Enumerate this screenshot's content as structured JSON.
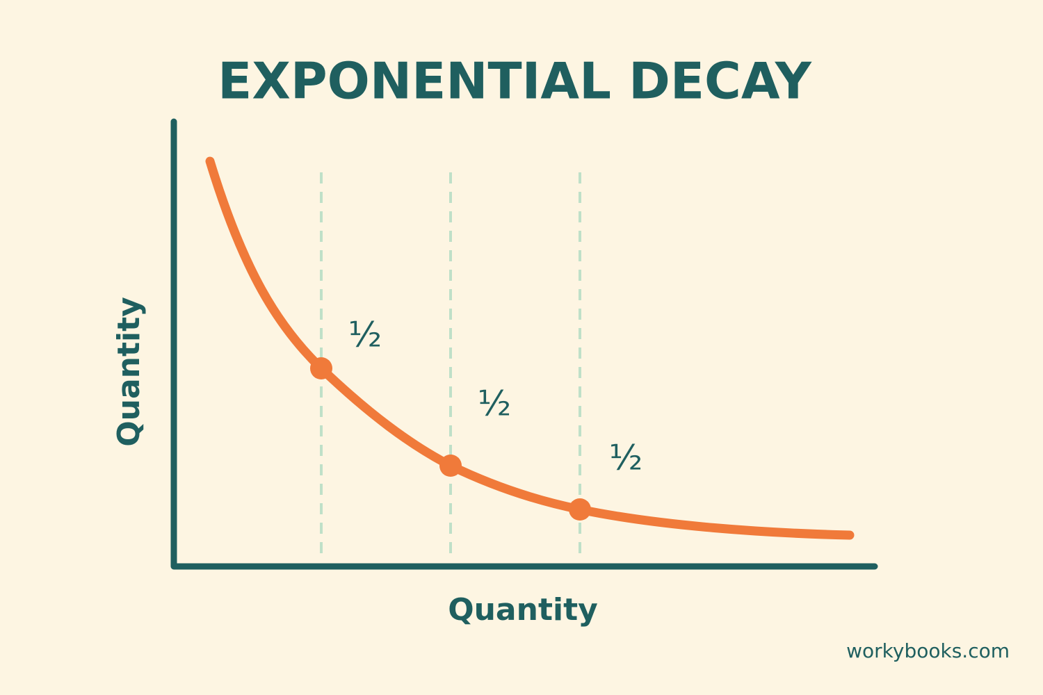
{
  "title": "EXPONENTIAL DECAY",
  "y_axis_label": "Quantity",
  "x_axis_label": "Quantity",
  "annotations": [
    "½",
    "½",
    "½"
  ],
  "watermark": "workybooks.com"
}
